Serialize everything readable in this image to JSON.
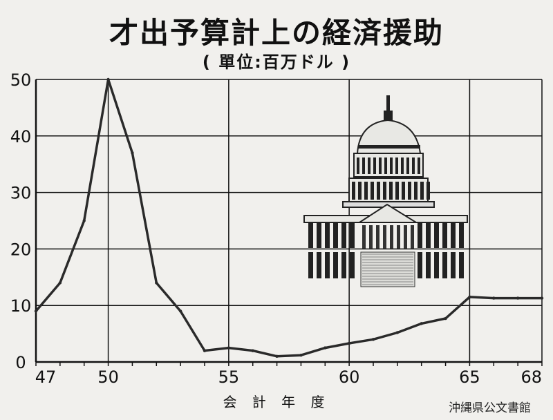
{
  "header": {
    "title": "才出予算計上の経済援助",
    "subtitle": "( 單位:百万ドル )"
  },
  "footer": {
    "xlabel": "会 計 年 度",
    "watermark": "沖縄県公文書館"
  },
  "illustration": {
    "name": "United States Capitol dome",
    "icon": "capitol-building-icon"
  },
  "chart_data": {
    "type": "line",
    "title": "才出予算計上の経済援助",
    "subtitle": "( 單位:百万ドル )",
    "xlabel": "会 計 年 度",
    "ylabel": "",
    "x_ticks": [
      47,
      50,
      55,
      60,
      65,
      68
    ],
    "y_ticks": [
      0,
      10,
      20,
      30,
      40,
      50
    ],
    "xlim": [
      47,
      68
    ],
    "ylim": [
      0,
      50
    ],
    "grid": true,
    "series": [
      {
        "color": "#2a2a2a",
        "x": [
          47,
          48,
          49,
          50,
          51,
          52,
          53,
          54,
          55,
          56,
          57,
          58,
          59,
          60,
          61,
          62,
          63,
          64,
          65,
          66,
          67,
          68
        ],
        "values": [
          9,
          14,
          25,
          50,
          37,
          14,
          9,
          2,
          2.5,
          2,
          1,
          1.2,
          2.5,
          3.3,
          4,
          5.2,
          6.8,
          7.7,
          11.5,
          11.3,
          11.3,
          11.3
        ]
      }
    ]
  }
}
